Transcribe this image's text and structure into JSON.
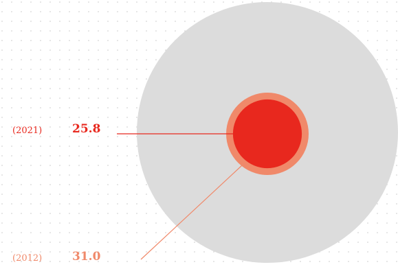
{
  "chart_data": {
    "type": "bubble",
    "title": "",
    "series": [
      {
        "name": "",
        "year": "(2021)",
        "value": 25.8,
        "value_label": "25.8",
        "color": "#e8281e"
      },
      {
        "name": "",
        "year": "(2012)",
        "value": 31.0,
        "value_label": "31.0",
        "color": "#f0896a"
      }
    ],
    "reference_circle_color": "#dcdcdc",
    "grid": "dotted",
    "grid_color": "#c8c8c8"
  }
}
